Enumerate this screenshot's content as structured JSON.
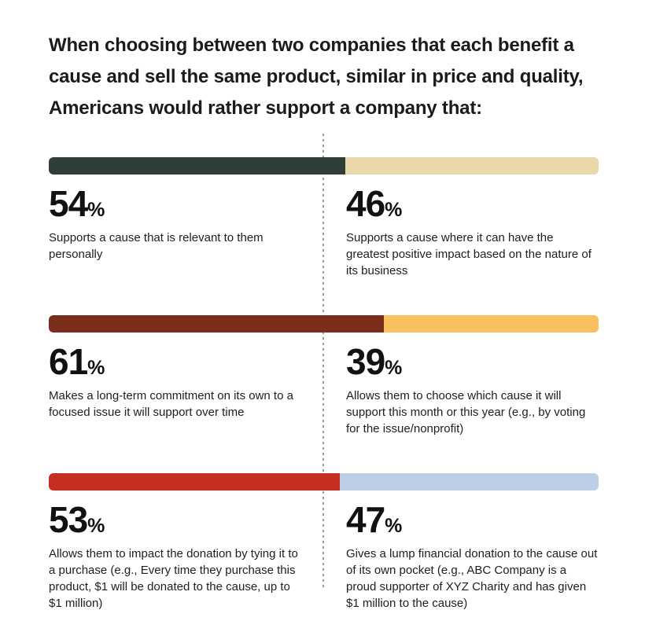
{
  "percent_sign": "%",
  "divider": {
    "color": "#9b9b9b",
    "style": "vertical-dashed",
    "position_pct": 50
  },
  "chart_data": {
    "type": "bar",
    "subtype": "paired-horizontal-stacked",
    "title": "When choosing between two companies that each benefit a cause and sell the same product, similar in price and quality, Americans would rather support a company that:",
    "unit": "%",
    "xlim": [
      0,
      100
    ],
    "legend": "none",
    "rows": [
      {
        "left": {
          "value": 54,
          "color": "#2F3E36",
          "description": "Supports a cause that is relevant to them personally"
        },
        "right": {
          "value": 46,
          "color": "#EAD8AB",
          "description": "Supports a cause where it can have the greatest positive impact based on the nature of its business"
        }
      },
      {
        "left": {
          "value": 61,
          "color": "#7C2E1C",
          "description": "Makes a long-term commitment on its own to a focused issue it will support over time"
        },
        "right": {
          "value": 39,
          "color": "#F8C05F",
          "description": "Allows them to choose which cause it will support this month or this year (e.g., by voting for the issue/nonprofit)"
        }
      },
      {
        "left": {
          "value": 53,
          "color": "#C52F21",
          "description": "Allows them to impact the donation by tying it to a purchase (e.g., Every time they purchase this product, $1 will be donated to the cause, up to $1 million)"
        },
        "right": {
          "value": 47,
          "color": "#BDCFE5",
          "description": "Gives a lump financial donation to the cause out of its own pocket (e.g., ABC Company is a proud supporter of XYZ Charity and has given $1 million to the cause)"
        }
      }
    ]
  }
}
